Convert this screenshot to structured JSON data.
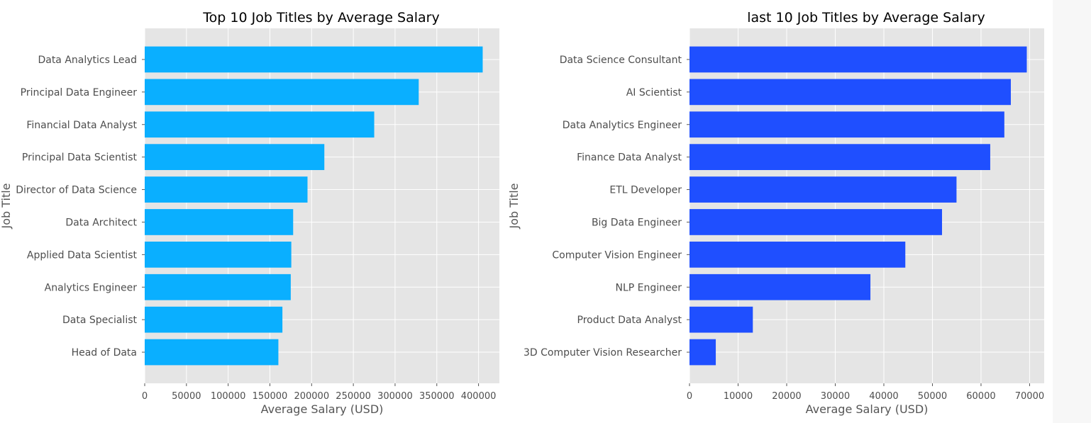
{
  "colors": {
    "left_bar": "#0aafff",
    "right_bar": "#1f4fff",
    "plot_bg": "#e5e5e5",
    "grid": "#ffffff"
  },
  "chart_data": [
    {
      "type": "bar",
      "orientation": "horizontal",
      "title": "Top 10 Job Titles by Average Salary",
      "xlabel": "Average Salary (USD)",
      "ylabel": "Job Title",
      "grid": true,
      "xlim": [
        0,
        425000
      ],
      "xticks": [
        0,
        50000,
        100000,
        150000,
        200000,
        250000,
        300000,
        350000,
        400000
      ],
      "xtick_labels": [
        "0",
        "50000",
        "100000",
        "150000",
        "200000",
        "250000",
        "300000",
        "350000",
        "400000"
      ],
      "categories": [
        "Data Analytics Lead",
        "Principal Data Engineer",
        "Financial Data Analyst",
        "Principal Data Scientist",
        "Director of Data Science",
        "Data Architect",
        "Applied Data Scientist",
        "Analytics Engineer",
        "Data Specialist",
        "Head of Data"
      ],
      "values": [
        405000,
        328333,
        275000,
        215242,
        195074,
        177874,
        175655,
        175000,
        165000,
        160162
      ],
      "color": "#0aafff"
    },
    {
      "type": "bar",
      "orientation": "horizontal",
      "title": "last 10 Job Titles by Average Salary",
      "xlabel": "Average Salary (USD)",
      "ylabel": "Job Title",
      "grid": true,
      "xlim": [
        0,
        73000
      ],
      "xticks": [
        0,
        10000,
        20000,
        30000,
        40000,
        50000,
        60000,
        70000
      ],
      "xtick_labels": [
        "0",
        "10000",
        "20000",
        "30000",
        "40000",
        "50000",
        "60000",
        "70000"
      ],
      "categories": [
        "Data Science Consultant",
        "AI Scientist",
        "Data Analytics Engineer",
        "Finance Data Analyst",
        "ETL Developer",
        "Big Data Engineer",
        "Computer Vision Engineer",
        "NLP Engineer",
        "Product Data Analyst",
        "3D Computer Vision Researcher"
      ],
      "values": [
        69420,
        66136,
        64799,
        61896,
        54957,
        51974,
        44419,
        37236,
        13036,
        5409
      ],
      "color": "#1f4fff"
    }
  ]
}
